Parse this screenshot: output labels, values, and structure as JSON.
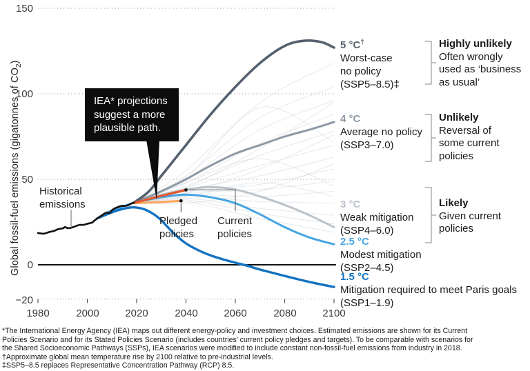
{
  "figure": {
    "y_axis": {
      "title_prefix": "Global fossil-fuel emissions (gigatonnes of CO",
      "title_sub": "2",
      "title_suffix": ")",
      "ticks": [
        "150",
        "100",
        "50",
        "0",
        "−20"
      ]
    },
    "x_axis": {
      "ticks": [
        "1980",
        "2000",
        "2020",
        "2040",
        "2060",
        "2080",
        "2100"
      ]
    },
    "callout": {
      "line1": "IEA* projections",
      "line2": "suggest a more",
      "line3": "plausible path."
    },
    "inline_labels": {
      "historical": "Historical emissions",
      "pledged": "Pledged policies",
      "current": "Current policies"
    },
    "scenario_labels": [
      {
        "temp": "5 °C",
        "sup": "†",
        "color": "#55616d",
        "desc1": "Worst-case",
        "desc2": "no policy",
        "desc3": "(SSP5–8.5)‡"
      },
      {
        "temp": "4 °C",
        "sup": "",
        "color": "#8c99a6",
        "desc1": "Average no policy",
        "desc2": "(SSP3–7.0)",
        "desc3": ""
      },
      {
        "temp": "3 °C",
        "sup": "",
        "color": "#b9c0c8",
        "desc1": "Weak mitigation",
        "desc2": "(SSP4–6.0)",
        "desc3": ""
      },
      {
        "temp": "2.5 °C",
        "sup": "",
        "color": "#46a5e2",
        "desc1": "Modest mitigation",
        "desc2": "(SSP2–4.5)",
        "desc3": ""
      },
      {
        "temp": "1.5 °C",
        "sup": "",
        "color": "#1272c1",
        "desc1": "Mitigation required to meet Paris goals",
        "desc2": "(SSP1–1.9)",
        "desc3": ""
      }
    ],
    "likelihood_labels": [
      {
        "title": "Highly unlikely",
        "desc1": "Often wrongly",
        "desc2": "used as ‘business",
        "desc3": "as usual’"
      },
      {
        "title": "Unlikely",
        "desc1": "Reversal of",
        "desc2": "some current",
        "desc3": "policies"
      },
      {
        "title": "Likely",
        "desc1": "Given current",
        "desc2": "policies",
        "desc3": ""
      }
    ],
    "footnotes": {
      "line1": "*The International Energy Agency (IEA) maps out different energy-policy and investment choices. Estimated emissions are shown for its Current",
      "line2": "Policies Scenario and for its Stated Policies Scenario (includes countries’ current policy pledges and targets). To be comparable with scenarios for",
      "line3": "the Shared Socioeconomic Pathways (SSPs), IEA scenarios were modified to include constant non-fossil-fuel emissions from industry in 2018.",
      "line4": "†Approximate global mean temperature rise by 2100 relative to pre-industrial levels.",
      "line5": "‡SSP5–8.5 replaces Representative Concentration Pathway (RCP) 8.5."
    }
  },
  "chart_data": {
    "type": "line",
    "ylabel": "Global fossil-fuel emissions (gigatonnes of CO2)",
    "ylim": [
      -20,
      150
    ],
    "y_gridlines_dotted": [
      150,
      100,
      50
    ],
    "y_zero_line": 0,
    "y_bottom_dotted": -20,
    "x_ticks": [
      1980,
      2000,
      2020,
      2040,
      2060,
      2080,
      2100
    ],
    "grid_color": "#9b9b9b",
    "series": [
      {
        "name": "3 °C Weak mitigation (SSP4–6.0)",
        "color": "#bcc3ca",
        "width": 3.0,
        "smooth": true,
        "points": [
          [
            2019,
            36.4
          ],
          [
            2030,
            41
          ],
          [
            2040,
            44
          ],
          [
            2050,
            45.5
          ],
          [
            2060,
            44
          ],
          [
            2070,
            40
          ],
          [
            2080,
            35
          ],
          [
            2090,
            29
          ],
          [
            2100,
            22
          ]
        ]
      },
      {
        "name": "4 °C Average no policy (SSP3–7.0)",
        "color": "#8c99a6",
        "width": 3.0,
        "smooth": true,
        "points": [
          [
            2019,
            36.4
          ],
          [
            2030,
            43
          ],
          [
            2040,
            50
          ],
          [
            2050,
            58
          ],
          [
            2060,
            65
          ],
          [
            2070,
            70
          ],
          [
            2080,
            75
          ],
          [
            2090,
            79
          ],
          [
            2100,
            83.5
          ]
        ]
      },
      {
        "name": "2.5 °C Modest mitigation (SSP2–4.5)",
        "color": "#46a5e2",
        "width": 3.0,
        "smooth": true,
        "points": [
          [
            2004,
            27.1
          ],
          [
            2010,
            31.9
          ],
          [
            2015,
            34.4
          ],
          [
            2019,
            36.3
          ],
          [
            2030,
            39.5
          ],
          [
            2040,
            41
          ],
          [
            2050,
            39.5
          ],
          [
            2060,
            36
          ],
          [
            2070,
            29.5
          ],
          [
            2080,
            22
          ],
          [
            2090,
            16
          ],
          [
            2100,
            12
          ]
        ]
      },
      {
        "name": "5 °C Worst-case no policy (SSP5–8.5)",
        "color": "#55616d",
        "width": 3.6,
        "smooth": true,
        "points": [
          [
            2019,
            36.4
          ],
          [
            2025,
            43
          ],
          [
            2030,
            52
          ],
          [
            2040,
            70
          ],
          [
            2050,
            88
          ],
          [
            2060,
            104
          ],
          [
            2070,
            118
          ],
          [
            2080,
            128
          ],
          [
            2088,
            131
          ],
          [
            2095,
            130.2
          ],
          [
            2100,
            127
          ]
        ]
      },
      {
        "name": "1.5 °C Mitigation required to meet Paris goals (SSP1–1.9)",
        "color": "#1272c1",
        "width": 3.4,
        "smooth": true,
        "points": [
          [
            2004,
            27.1
          ],
          [
            2008,
            29.5
          ],
          [
            2012,
            31.7
          ],
          [
            2016,
            33.2
          ],
          [
            2019,
            33.6
          ],
          [
            2023,
            32.5
          ],
          [
            2027,
            29.5
          ],
          [
            2030,
            26
          ],
          [
            2035,
            18.5
          ],
          [
            2040,
            12.5
          ],
          [
            2045,
            8.5
          ],
          [
            2050,
            5.5
          ],
          [
            2055,
            3.2
          ],
          [
            2060,
            1.2
          ],
          [
            2065,
            -0.6
          ],
          [
            2070,
            -2.8
          ],
          [
            2080,
            -6.5
          ],
          [
            2090,
            -10
          ],
          [
            2100,
            -13
          ]
        ]
      },
      {
        "name": "Pledged policies (IEA Stated Policies Scenario)",
        "color": "#f8a95e",
        "width": 3.2,
        "smooth": false,
        "end_dot": true,
        "points": [
          [
            2019,
            36.0
          ],
          [
            2030,
            36.7
          ],
          [
            2038,
            37.4
          ]
        ]
      },
      {
        "name": "Current policies (IEA Current Policies Scenario)",
        "color": "#e4572e",
        "width": 3.2,
        "smooth": false,
        "end_dot": true,
        "points": [
          [
            2019,
            36.3
          ],
          [
            2030,
            40.3
          ],
          [
            2040,
            43.8
          ]
        ]
      },
      {
        "name": "Historical emissions",
        "color": "#141414",
        "width": 2.7,
        "smooth": false,
        "points": [
          [
            1980,
            18.6
          ],
          [
            1981,
            18.4
          ],
          [
            1982,
            18.2
          ],
          [
            1983,
            18.4
          ],
          [
            1984,
            18.9
          ],
          [
            1985,
            19.3
          ],
          [
            1986,
            19.6
          ],
          [
            1987,
            20.1
          ],
          [
            1988,
            20.8
          ],
          [
            1989,
            21.1
          ],
          [
            1990,
            21.3
          ],
          [
            1991,
            22.1
          ],
          [
            1992,
            21.4
          ],
          [
            1993,
            21.5
          ],
          [
            1994,
            21.9
          ],
          [
            1995,
            22.4
          ],
          [
            1996,
            23.0
          ],
          [
            1997,
            23.4
          ],
          [
            1998,
            23.3
          ],
          [
            1999,
            23.5
          ],
          [
            2000,
            24.0
          ],
          [
            2001,
            24.3
          ],
          [
            2002,
            24.7
          ],
          [
            2003,
            26.0
          ],
          [
            2004,
            27.1
          ],
          [
            2005,
            28.1
          ],
          [
            2006,
            29.0
          ],
          [
            2007,
            30.0
          ],
          [
            2008,
            30.6
          ],
          [
            2009,
            30.2
          ],
          [
            2010,
            31.9
          ],
          [
            2011,
            32.9
          ],
          [
            2012,
            33.5
          ],
          [
            2013,
            34.1
          ],
          [
            2014,
            34.5
          ],
          [
            2015,
            34.4
          ],
          [
            2016,
            34.6
          ],
          [
            2017,
            35.1
          ],
          [
            2018,
            35.9
          ],
          [
            2019,
            36.4
          ]
        ]
      }
    ],
    "ensemble": {
      "comment_name": "faint SSP scenario ensemble lines",
      "color": "#c7cdd4",
      "opacity": 0.42,
      "width": 1.1,
      "start": [
        2019,
        36.4
      ],
      "members_2040_2070_2100": [
        [
          55,
          95,
          118
        ],
        [
          52,
          86,
          104
        ],
        [
          50,
          79,
          96
        ],
        [
          48,
          71,
          88
        ],
        [
          46,
          64,
          78
        ],
        [
          45,
          58,
          70
        ],
        [
          44,
          52,
          63
        ],
        [
          43,
          47,
          56
        ],
        [
          42,
          44,
          49
        ],
        [
          41,
          40,
          43
        ],
        [
          40,
          37,
          36
        ],
        [
          39,
          33,
          29
        ],
        [
          38,
          30,
          24
        ],
        [
          37,
          27,
          19
        ],
        [
          48,
          62,
          46
        ],
        [
          42,
          56,
          76
        ],
        [
          51,
          92,
          72
        ],
        [
          36,
          43,
          59
        ],
        [
          45,
          68,
          95
        ],
        [
          40,
          48,
          40
        ]
      ]
    }
  }
}
